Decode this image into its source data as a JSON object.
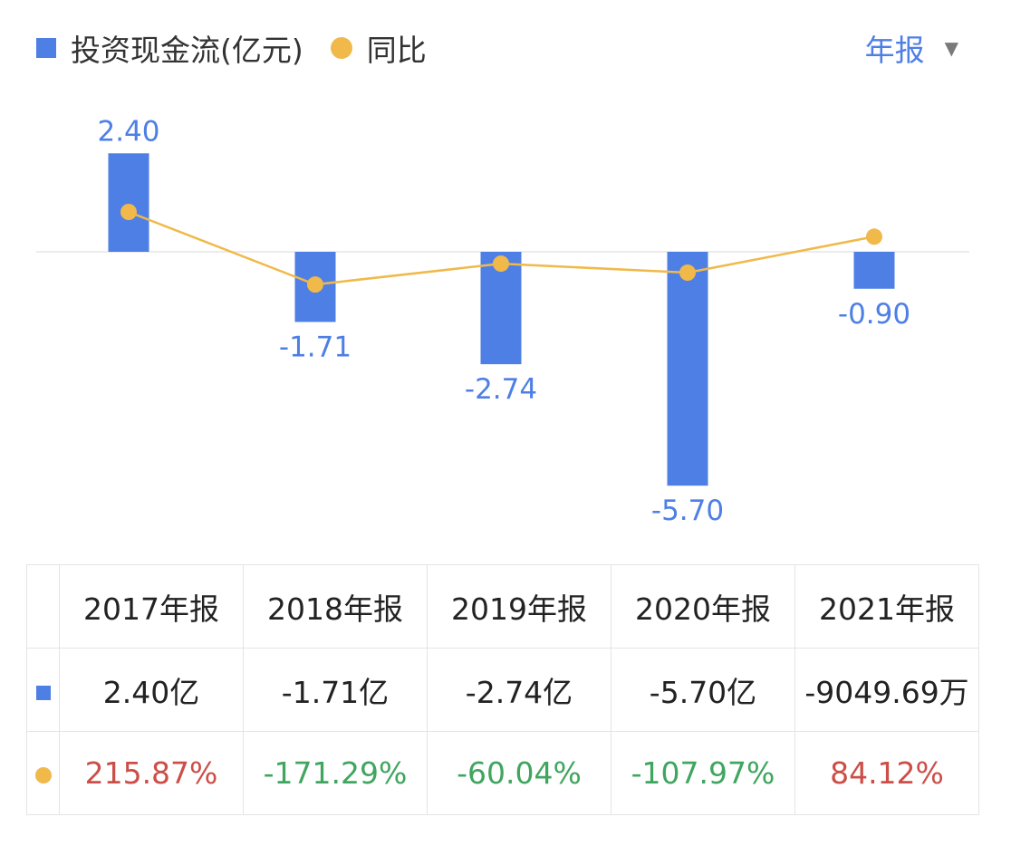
{
  "legend": {
    "series1": "投资现金流(亿元)",
    "series2": "同比"
  },
  "period_selector": {
    "label": "年报",
    "icon": "caret-down-icon"
  },
  "colors": {
    "bar": "#4e7fe5",
    "line": "#f0b94a",
    "positive": "#cc4e48",
    "negative": "#3fa55f",
    "axis": "#e6e6e6",
    "label": "#4e7fe5"
  },
  "chart_data": {
    "type": "bar",
    "categories": [
      "2017年报",
      "2018年报",
      "2019年报",
      "2020年报",
      "2021年报"
    ],
    "series": [
      {
        "name": "投资现金流(亿元)",
        "type": "bar",
        "values": [
          2.4,
          -1.71,
          -2.74,
          -5.7,
          -0.9
        ],
        "labels": [
          "2.40",
          "-1.71",
          "-2.74",
          "-5.70",
          "-0.90"
        ]
      },
      {
        "name": "同比",
        "type": "line",
        "values": [
          215.87,
          -171.29,
          -60.04,
          -107.97,
          84.12
        ]
      }
    ],
    "ylim": [
      -6.0,
      3.0
    ],
    "grid": false,
    "legend_position": "top-left"
  },
  "table": {
    "headers": [
      "2017年报",
      "2018年报",
      "2019年报",
      "2020年报",
      "2021年报"
    ],
    "cash_flow": [
      "2.40亿",
      "-1.71亿",
      "-2.74亿",
      "-5.70亿",
      "-9049.69万"
    ],
    "yoy": [
      "215.87%",
      "-171.29%",
      "-60.04%",
      "-107.97%",
      "84.12%"
    ],
    "yoy_sign": [
      "positive",
      "negative",
      "negative",
      "negative",
      "positive"
    ]
  }
}
